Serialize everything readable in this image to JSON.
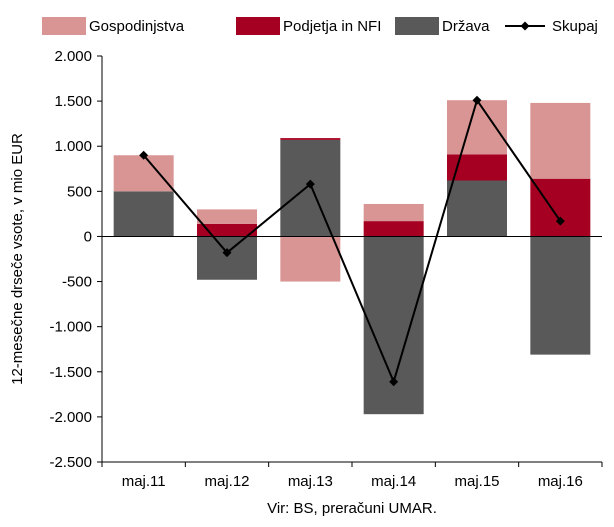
{
  "chart_data": {
    "type": "bar",
    "stacked": true,
    "categories": [
      "maj.11",
      "maj.12",
      "maj.13",
      "maj.14",
      "maj.15",
      "maj.16"
    ],
    "ylabel": "12-mesečne drseče vsote, v mio EUR",
    "ylim": [
      -2500,
      2000
    ],
    "yticks": [
      2000,
      1500,
      1000,
      500,
      0,
      -500,
      -1000,
      -1500,
      -2000,
      -2500
    ],
    "ytick_labels": [
      "2.000",
      "1.500",
      "1.000",
      "500",
      "0",
      "-500",
      "-1.000",
      "-1.500",
      "-2.000",
      "-2.500"
    ],
    "grid": false,
    "legend_position": "top",
    "source": "Vir: BS, preračuni UMAR.",
    "series": [
      {
        "name": "Gospodinjstva",
        "kind": "bar",
        "color": "#d99594",
        "values": [
          400,
          160,
          -500,
          190,
          600,
          840
        ]
      },
      {
        "name": "Podjetja in NFI",
        "kind": "bar",
        "color": "#a50021",
        "values": [
          0,
          140,
          20,
          170,
          290,
          640
        ]
      },
      {
        "name": "Država",
        "kind": "bar",
        "color": "#595959",
        "values": [
          500,
          -480,
          1070,
          -1970,
          620,
          -1310
        ]
      },
      {
        "name": "Skupaj",
        "kind": "line",
        "color": "#000000",
        "values": [
          900,
          -180,
          580,
          -1610,
          1510,
          170
        ]
      }
    ]
  }
}
